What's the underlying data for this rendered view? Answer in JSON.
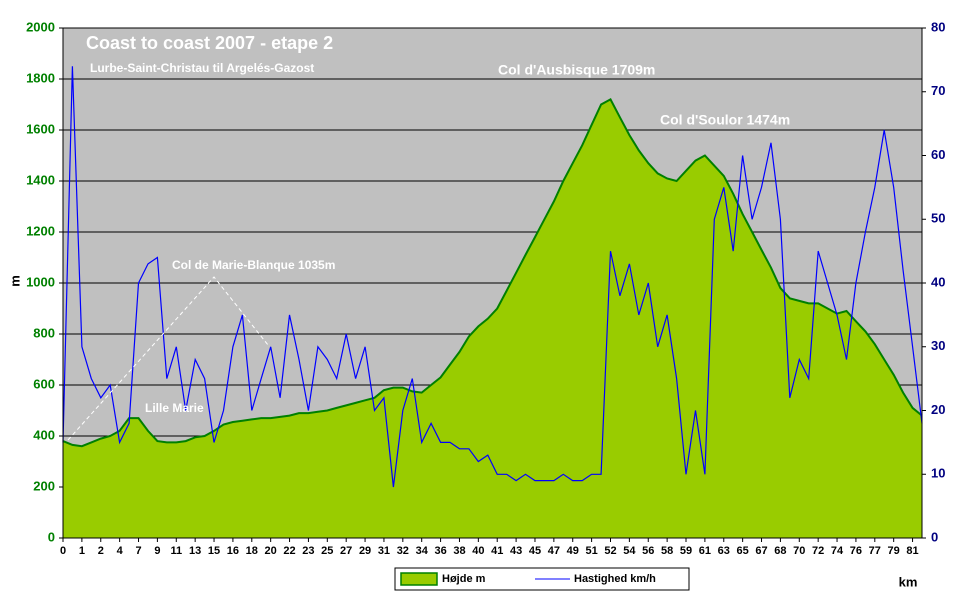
{
  "chart_data": {
    "type": "area-line",
    "title": "Coast to coast 2007 - etape 2",
    "subtitle": "Lurbe-Saint-Christau til Argelés-Gazost",
    "ylabel": "m",
    "xlabel": "km",
    "annotations": [
      "Col d'Ausbisque 1709m",
      "Col d'Soulor 1474m",
      "Col de Marie-Blanque 1035m",
      "Lille Marie"
    ],
    "categories": [
      "0",
      null,
      "1",
      null,
      "2",
      null,
      "4",
      null,
      "7",
      null,
      "9",
      null,
      "11",
      null,
      "13",
      null,
      "15",
      null,
      "16",
      null,
      "18",
      null,
      "20",
      null,
      "22",
      null,
      "23",
      null,
      "25",
      null,
      "27",
      null,
      "29",
      null,
      "31",
      null,
      "32",
      null,
      "34",
      null,
      "36",
      null,
      "38",
      null,
      "40",
      null,
      "41",
      null,
      "43",
      null,
      "45",
      null,
      "47",
      null,
      "49",
      null,
      "51",
      null,
      "52",
      null,
      "54",
      null,
      "56",
      null,
      "58",
      null,
      "59",
      null,
      "61",
      null,
      "63",
      null,
      "65",
      null,
      "67",
      null,
      "68",
      null,
      "70",
      null,
      "72",
      null,
      "74",
      null,
      "76",
      null,
      "77",
      null,
      "79",
      null,
      "81",
      null
    ],
    "series": [
      {
        "name": "Højde m",
        "color": "#99cc00",
        "values": [
          380,
          365,
          360,
          375,
          390,
          400,
          420,
          470,
          470,
          420,
          380,
          375,
          375,
          380,
          395,
          400,
          420,
          445,
          455,
          460,
          465,
          470,
          470,
          475,
          480,
          490,
          490,
          495,
          500,
          510,
          520,
          530,
          540,
          550,
          580,
          590,
          590,
          575,
          570,
          600,
          630,
          680,
          730,
          790,
          830,
          860,
          900,
          970,
          1040,
          1110,
          1180,
          1250,
          1320,
          1400,
          1470,
          1540,
          1620,
          1700,
          1720,
          1650,
          1580,
          1520,
          1470,
          1430,
          1410,
          1400,
          1440,
          1480,
          1500,
          1460,
          1420,
          1350,
          1270,
          1200,
          1130,
          1060,
          980,
          940,
          930,
          920,
          920,
          900,
          880,
          890,
          850,
          810,
          760,
          700,
          640,
          570,
          510,
          480
        ]
      },
      {
        "name": "Hastighed km/h",
        "color": "#0000ff",
        "axis": "y2",
        "values": [
          15,
          74,
          30,
          25,
          22,
          24,
          15,
          18,
          40,
          43,
          44,
          25,
          30,
          20,
          28,
          25,
          15,
          20,
          30,
          35,
          20,
          25,
          30,
          22,
          35,
          28,
          20,
          30,
          28,
          25,
          32,
          25,
          30,
          20,
          22,
          8,
          20,
          25,
          15,
          18,
          15,
          15,
          14,
          14,
          12,
          13,
          10,
          10,
          9,
          10,
          9,
          9,
          9,
          10,
          9,
          9,
          10,
          10,
          45,
          38,
          43,
          35,
          40,
          30,
          35,
          25,
          10,
          20,
          10,
          50,
          55,
          45,
          60,
          50,
          55,
          62,
          50,
          22,
          28,
          25,
          45,
          40,
          35,
          28,
          40,
          48,
          55,
          64,
          55,
          42,
          30,
          18
        ]
      }
    ],
    "ylim": [
      0,
      2000
    ],
    "yticks": [
      0,
      200,
      400,
      600,
      800,
      1000,
      1200,
      1400,
      1600,
      1800,
      2000
    ],
    "y2lim": [
      0,
      80
    ],
    "y2ticks": [
      0,
      10,
      20,
      30,
      40,
      50,
      60,
      70,
      80
    ],
    "grid": true
  }
}
